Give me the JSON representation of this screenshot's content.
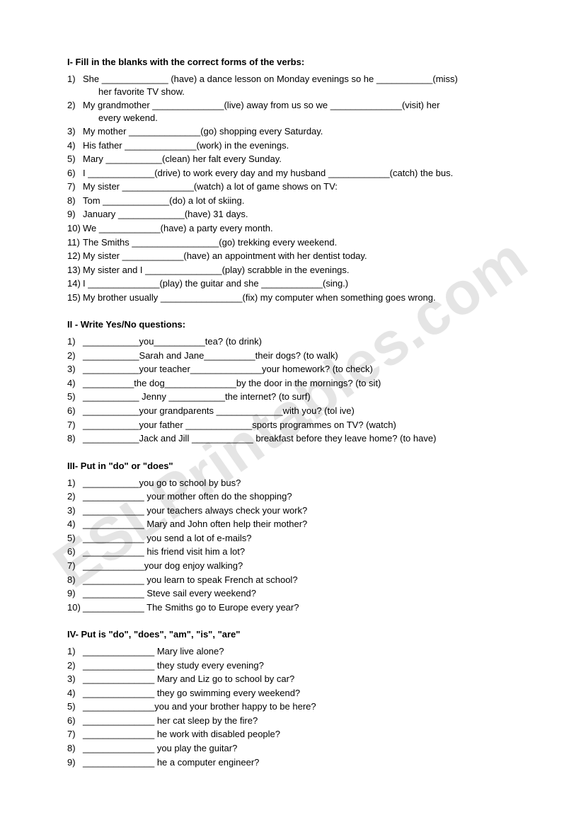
{
  "watermark": "ESLPrintables.com",
  "section1": {
    "heading": "I- Fill in the blanks with the correct forms of the verbs:",
    "items": [
      {
        "num": "1)",
        "text": "She _____________ (have) a dance lesson on Monday evenings so he ___________(miss)",
        "cont": "her  favorite TV show."
      },
      {
        "num": "2)",
        "text": "My grandmother ______________(live) away from us so we ______________(visit) her",
        "cont": "every wekend."
      },
      {
        "num": "3)",
        "text": "My mother ______________(go) shopping every Saturday."
      },
      {
        "num": "4)",
        "text": "His father ______________(work) in the evenings."
      },
      {
        "num": "5)",
        "text": "Mary ___________(clean) her falt every Sunday."
      },
      {
        "num": "6)",
        "text": "I _____________(drive) to work every day and my husband ____________(catch) the bus."
      },
      {
        "num": "7)",
        "text": "My sister ______________(watch) a lot of game shows on TV:"
      },
      {
        "num": "8)",
        "text": "Tom _____________(do) a lot of skiing."
      },
      {
        "num": "9)",
        "text": "January _____________(have) 31 days."
      },
      {
        "num": "10)",
        "text": "We ____________(have) a party every month."
      },
      {
        "num": "11)",
        "text": "The Smiths _________________(go) trekking every weekend."
      },
      {
        "num": "12)",
        "text": "My sister ____________(have) an appointment with her dentist today."
      },
      {
        "num": "13)",
        "text": "My sister and I _______________(play) scrabble in the evenings."
      },
      {
        "num": "14)",
        "text": "I ______________(play) the guitar and she ____________(sing.)"
      },
      {
        "num": "15)",
        "text": "My brother usually ________________(fix) my computer when something goes wrong."
      }
    ]
  },
  "section2": {
    "heading": "II - Write Yes/No questions:",
    "items": [
      {
        "num": "1)",
        "text": "___________you__________tea? (to drink)"
      },
      {
        "num": "2)",
        "text": "___________Sarah and Jane__________their dogs? (to walk)"
      },
      {
        "num": "3)",
        "text": "___________your teacher______________your homework? (to check)"
      },
      {
        "num": "4)",
        "text": "__________the dog______________by the door in the mornings? (to sit)"
      },
      {
        "num": "5)",
        "text": "___________ Jenny ___________the internet? (to surf)"
      },
      {
        "num": "6)",
        "text": "___________your grandparents _____________with you? (tol ive)"
      },
      {
        "num": "7)",
        "text": "___________your father _____________sports programmes on TV? (watch)"
      },
      {
        "num": "8)",
        "text": "___________Jack and Jill  ____________ breakfast before they leave home? (to have)"
      }
    ]
  },
  "section3": {
    "heading": "III- Put in \"do\" or \"does\"",
    "items": [
      {
        "num": "1)",
        "text": "___________you go to school by bus?"
      },
      {
        "num": "2)",
        "text": "____________ your mother often do the shopping?"
      },
      {
        "num": "3)",
        "text": "____________ your teachers always check your work?"
      },
      {
        "num": "4)",
        "text": "____________ Mary and John often help their mother?"
      },
      {
        "num": "5)",
        "text": "____________ you send a lot of e-mails?"
      },
      {
        "num": "6)",
        "text": "____________ his friend visit him a lot?"
      },
      {
        "num": "7)",
        "text": "____________your dog enjoy walking?"
      },
      {
        "num": "8)",
        "text": "____________ you learn to speak French at school?"
      },
      {
        "num": "9)",
        "text": "____________ Steve sail every weekend?"
      },
      {
        "num": "10)",
        "text": "____________ The Smiths go to Europe every year?"
      }
    ]
  },
  "section4": {
    "heading": "IV- Put is \"do\", \"does\", \"am\", \"is\", \"are\"",
    "items": [
      {
        "num": "1)",
        "text": "______________ Mary live alone?"
      },
      {
        "num": "2)",
        "text": "______________ they study every evening?"
      },
      {
        "num": "3)",
        "text": "______________ Mary and Liz go to school by car?"
      },
      {
        "num": "4)",
        "text": "______________ they go swimming every weekend?"
      },
      {
        "num": "5)",
        "text": "______________you and your brother happy to be here?"
      },
      {
        "num": "6)",
        "text": "______________ her cat sleep by the fire?"
      },
      {
        "num": "7)",
        "text": "______________ he work with disabled people?"
      },
      {
        "num": "8)",
        "text": "______________ you play the guitar?"
      },
      {
        "num": "9)",
        "text": "______________ he a computer engineer?"
      }
    ]
  }
}
